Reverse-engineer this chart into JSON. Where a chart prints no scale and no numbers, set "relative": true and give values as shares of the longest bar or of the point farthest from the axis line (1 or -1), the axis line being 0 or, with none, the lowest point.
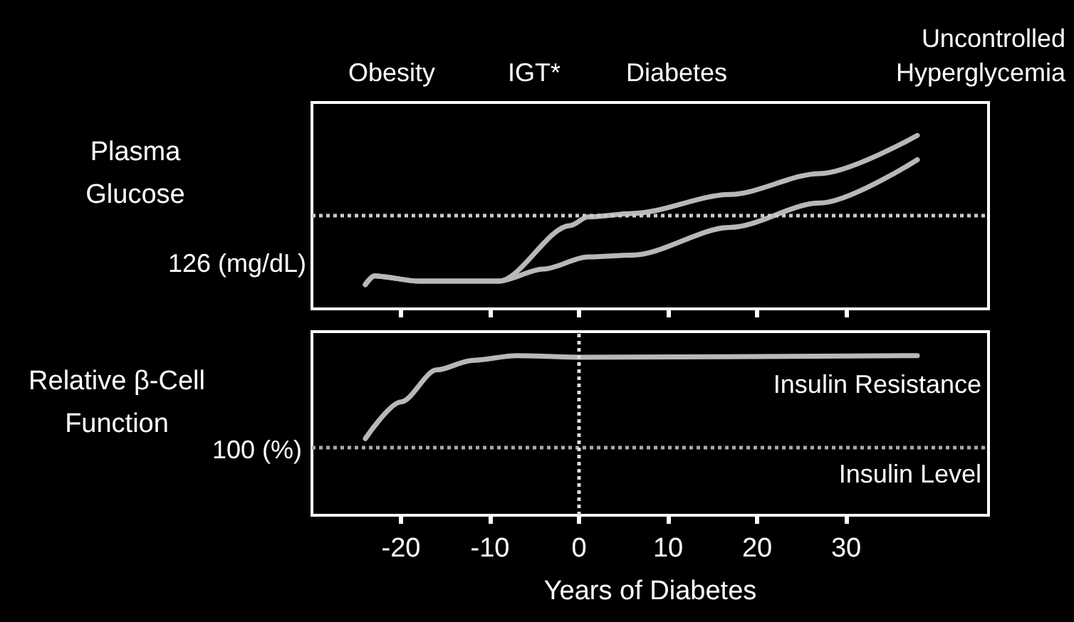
{
  "chart_data": [
    {
      "type": "line",
      "relative": true,
      "ylabel": "Plasma\nGlucose",
      "xlim": [
        -30,
        46
      ],
      "xticks": [
        -20,
        -10,
        0,
        10,
        20,
        30
      ],
      "tick_labels": false,
      "marker": "none",
      "line_style": "solid",
      "series": [
        {
          "color": "#b8b8b8",
          "x": [
            -24,
            -23,
            -18,
            -9,
            -1,
            1,
            6,
            17,
            27,
            38
          ],
          "values": [
            0.14,
            0.19,
            0.16,
            0.16,
            0.48,
            0.53,
            0.55,
            0.66,
            0.78,
            1
          ]
        },
        {
          "color": "#b8b8b8",
          "x": [
            -24,
            -23,
            -18,
            -9,
            -4,
            1,
            6,
            17,
            27,
            38
          ],
          "values": [
            0.14,
            0.19,
            0.16,
            0.16,
            0.23,
            0.3,
            0.31,
            0.47,
            0.61,
            0.86
          ]
        }
      ],
      "ref_lines": [
        {
          "axis": "y",
          "value": 0.54,
          "label": null,
          "color": "#cccccc",
          "line_style": "dotted"
        }
      ],
      "annotations": [
        "126 (mg/dL)",
        "Obesity",
        "IGT*",
        "Diabetes",
        "Uncontrolled\nHyperglycemia"
      ]
    },
    {
      "type": "line",
      "relative": true,
      "ylabel": "Relative β-Cell\nFunction",
      "xlabel": "Years of Diabetes",
      "xlim": [
        -30,
        46
      ],
      "xticks": [
        -20,
        -10,
        0,
        10,
        20,
        30
      ],
      "marker": "none",
      "line_style": "solid",
      "series": [
        {
          "color": "#b8b8b8",
          "x": [
            -24,
            -20,
            -16,
            -12,
            -7,
            0,
            38
          ],
          "values": [
            0.48,
            0.71,
            0.91,
            0.97,
            1,
            0.99,
            1
          ]
        }
      ],
      "ref_lines": [
        {
          "axis": "y",
          "value": 0.43,
          "label": null,
          "color": "#aaaaaa",
          "line_style": "dotted"
        },
        {
          "axis": "x",
          "value": 0,
          "label": null,
          "color": "#dddddd",
          "line_style": "dotted"
        }
      ],
      "annotations": [
        "100 (%)",
        "Insulin Resistance",
        "Insulin Level"
      ]
    }
  ]
}
